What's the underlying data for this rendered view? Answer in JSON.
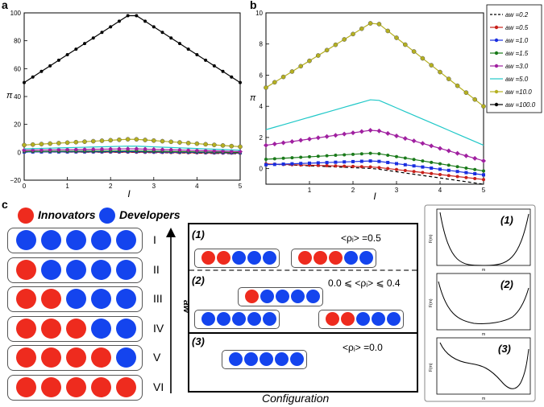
{
  "panel_a": {
    "letter": "a",
    "xlabel": "I",
    "ylabel": "π",
    "xticks": [
      "0",
      "1",
      "2",
      "3",
      "4",
      "5"
    ],
    "yticks": [
      "−20",
      "0",
      "20",
      "40",
      "60",
      "80",
      "100"
    ]
  },
  "panel_b": {
    "letter": "b",
    "xlabel": "I",
    "ylabel": "π",
    "xticks": [
      "1",
      "2",
      "3",
      "4",
      "5"
    ],
    "yticks": [
      "0",
      "2",
      "4",
      "6",
      "8",
      "10"
    ],
    "legend": [
      {
        "label": "aw =0.2"
      },
      {
        "label": "aw =0.5"
      },
      {
        "label": "aw =1.0"
      },
      {
        "label": "aw =1.5"
      },
      {
        "label": "aw =3.0"
      },
      {
        "label": "aw =5.0"
      },
      {
        "label": "aw =10.0"
      },
      {
        "label": "aw =100.0"
      }
    ]
  },
  "chart_data": [
    {
      "type": "line",
      "title": "",
      "xlabel": "I",
      "ylabel": "π",
      "xlim": [
        0,
        5
      ],
      "ylim": [
        -20,
        100
      ],
      "series": [
        {
          "name": "aw=0.2",
          "peak_x": 2.5,
          "y_start": 0.3,
          "y_peak": 0.0,
          "y_end": -1.0
        },
        {
          "name": "aw=0.5",
          "peak_x": 2.5,
          "y_start": 0.3,
          "y_peak": 0.1,
          "y_end": -0.7
        },
        {
          "name": "aw=1.0",
          "peak_x": 2.5,
          "y_start": 0.25,
          "y_peak": 0.5,
          "y_end": -0.4
        },
        {
          "name": "aw=1.5",
          "peak_x": 2.5,
          "y_start": 0.6,
          "y_peak": 1.0,
          "y_end": -0.15
        },
        {
          "name": "aw=3.0",
          "peak_x": 2.5,
          "y_start": 1.5,
          "y_peak": 2.5,
          "y_end": 0.5
        },
        {
          "name": "aw=5.0",
          "peak_x": 2.5,
          "y_start": 2.5,
          "y_peak": 4.5,
          "y_end": 1.5
        },
        {
          "name": "aw=10.0",
          "peak_x": 2.5,
          "y_start": 5.2,
          "y_peak": 9.5,
          "y_end": 4.0
        },
        {
          "name": "aw=100.0",
          "peak_x": 2.5,
          "y_start": 50,
          "y_peak": 100,
          "y_end": 50
        }
      ]
    },
    {
      "type": "line",
      "title": "",
      "xlabel": "I",
      "ylabel": "π",
      "xlim": [
        0,
        5
      ],
      "ylim": [
        -1,
        10
      ],
      "series_ref": "same as panel a, zoomed (aw=100.0 off-scale)"
    }
  ],
  "panel_c": {
    "letter": "c",
    "legend_innovators": "Innovators",
    "legend_developers": "Developers",
    "colors": {
      "innovator": "#ee2b1e",
      "developer": "#1444ee"
    },
    "rows": [
      {
        "label": "I",
        "innovators": 0
      },
      {
        "label": "II",
        "innovators": 1
      },
      {
        "label": "III",
        "innovators": 2
      },
      {
        "label": "IV",
        "innovators": 3
      },
      {
        "label": "V",
        "innovators": 4
      },
      {
        "label": "VI",
        "innovators": 5
      }
    ],
    "aw_label": "aw",
    "config": {
      "caption": "Configuration",
      "s1_label": "(1)",
      "s1_text": "<ρᵢ> =0.5",
      "s2_label": "(2)",
      "s2_text": "0.0 ⩽ <ρᵢ> ⩽ 0.4",
      "s3_label": "(3)",
      "s3_text": "<ρᵢ> =0.0"
    },
    "energy": {
      "p1_label": "(1)",
      "p2_label": "(2)",
      "p3_label": "(3)",
      "ylabel": "F(m)",
      "xlabel": "m"
    }
  }
}
